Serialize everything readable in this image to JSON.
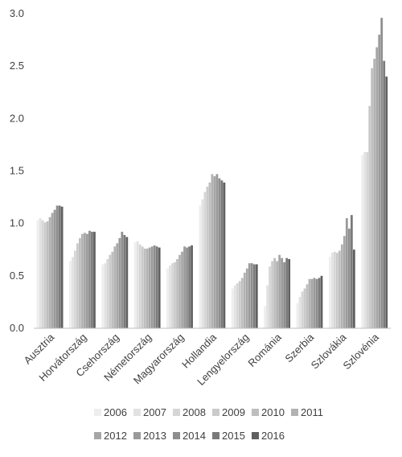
{
  "chart_data": {
    "type": "bar",
    "title": "",
    "xlabel": "",
    "ylabel": "",
    "ylim": [
      0,
      3.0
    ],
    "yticks": [
      "0.0",
      "0.5",
      "1.0",
      "1.5",
      "2.0",
      "2.5",
      "3.0"
    ],
    "grid": false,
    "legend_position": "bottom",
    "categories": [
      "Ausztria",
      "Horvátország",
      "Csehország",
      "Németország",
      "Magyarország",
      "Hollandia",
      "Lengyelország",
      "Románia",
      "Szerbia",
      "Szlovákia",
      "Szlovénia"
    ],
    "series": [
      {
        "name": "2006",
        "color": "#eeeeee",
        "values": [
          1.03,
          0.64,
          0.61,
          0.82,
          0.57,
          1.17,
          0.38,
          0.21,
          0.24,
          0.68,
          1.65
        ]
      },
      {
        "name": "2007",
        "color": "#e2e2e2",
        "values": [
          1.05,
          0.68,
          0.62,
          0.83,
          0.6,
          1.23,
          0.41,
          0.41,
          0.3,
          0.72,
          1.68
        ]
      },
      {
        "name": "2008",
        "color": "#d6d6d6",
        "values": [
          1.03,
          0.74,
          0.66,
          0.8,
          0.62,
          1.3,
          0.43,
          0.59,
          0.35,
          0.73,
          1.68
        ]
      },
      {
        "name": "2009",
        "color": "#cacaca",
        "values": [
          1.01,
          0.81,
          0.7,
          0.78,
          0.63,
          1.35,
          0.45,
          0.64,
          0.38,
          0.72,
          2.12
        ]
      },
      {
        "name": "2010",
        "color": "#bebebe",
        "values": [
          1.02,
          0.86,
          0.73,
          0.76,
          0.66,
          1.39,
          0.48,
          0.67,
          0.42,
          0.74,
          2.48
        ]
      },
      {
        "name": "2011",
        "color": "#b2b2b2",
        "values": [
          1.06,
          0.9,
          0.78,
          0.76,
          0.7,
          1.47,
          0.53,
          0.64,
          0.47,
          0.8,
          2.57
        ]
      },
      {
        "name": "2012",
        "color": "#a6a6a6",
        "values": [
          1.1,
          0.91,
          0.81,
          0.77,
          0.73,
          1.45,
          0.57,
          0.7,
          0.47,
          0.88,
          2.68
        ]
      },
      {
        "name": "2013",
        "color": "#9a9a9a",
        "values": [
          1.13,
          0.9,
          0.86,
          0.78,
          0.78,
          1.47,
          0.62,
          0.67,
          0.48,
          1.05,
          2.8
        ]
      },
      {
        "name": "2014",
        "color": "#8e8e8e",
        "values": [
          1.17,
          0.93,
          0.92,
          0.79,
          0.77,
          1.43,
          0.62,
          0.63,
          0.47,
          0.95,
          2.96
        ]
      },
      {
        "name": "2015",
        "color": "#7a7a7a",
        "values": [
          1.17,
          0.92,
          0.89,
          0.78,
          0.78,
          1.41,
          0.61,
          0.67,
          0.48,
          1.08,
          2.55
        ]
      },
      {
        "name": "2016",
        "color": "#606060",
        "values": [
          1.16,
          0.92,
          0.87,
          0.77,
          0.79,
          1.39,
          0.61,
          0.66,
          0.5,
          0.75,
          2.4
        ]
      }
    ]
  }
}
